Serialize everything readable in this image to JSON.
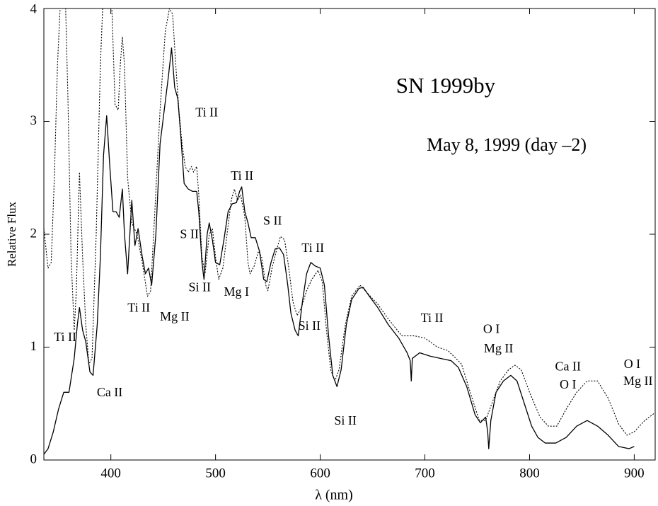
{
  "chart_data": {
    "type": "line",
    "title": "SN 1999by",
    "subtitle": "May 8, 1999 (day –2)",
    "xlabel": "λ  (nm)",
    "ylabel": "Relative Flux",
    "xlim": [
      336,
      920
    ],
    "ylim": [
      0,
      4
    ],
    "xticks": [
      400,
      500,
      600,
      700,
      800,
      900
    ],
    "yticks": [
      0,
      1,
      2,
      3,
      4
    ],
    "grid": false,
    "series": [
      {
        "color": "#000000",
        "style": "solid",
        "x": [
          336,
          340,
          345,
          350,
          355,
          360,
          365,
          368,
          370,
          373,
          376,
          380,
          383,
          387,
          390,
          393,
          396,
          399,
          402,
          405,
          408,
          411,
          413,
          416,
          420,
          423,
          426,
          430,
          433,
          436,
          439,
          443,
          447,
          451,
          455,
          458,
          461,
          464,
          467,
          470,
          474,
          478,
          482,
          484,
          487,
          489,
          492,
          494,
          497,
          500,
          504,
          508,
          512,
          516,
          520,
          523,
          525,
          528,
          531,
          534,
          538,
          542,
          546,
          549,
          553,
          557,
          561,
          565,
          569,
          572,
          576,
          579,
          583,
          587,
          591,
          595,
          600,
          604,
          608,
          612,
          616,
          620,
          625,
          630,
          637,
          641,
          647,
          655,
          665,
          675,
          683,
          686,
          687,
          688,
          695,
          705,
          715,
          725,
          732,
          740,
          748,
          753,
          758,
          760,
          761,
          763,
          768,
          775,
          782,
          788,
          795,
          802,
          808,
          815,
          825,
          835,
          845,
          855,
          865,
          875,
          885,
          895,
          900
        ],
        "values": [
          0.05,
          0.1,
          0.25,
          0.45,
          0.6,
          0.6,
          0.9,
          1.2,
          1.35,
          1.15,
          1.05,
          0.78,
          0.75,
          1.2,
          1.8,
          2.7,
          3.05,
          2.6,
          2.2,
          2.2,
          2.15,
          2.4,
          2.0,
          1.65,
          2.3,
          1.9,
          2.05,
          1.8,
          1.65,
          1.7,
          1.55,
          2.0,
          2.8,
          3.1,
          3.4,
          3.65,
          3.3,
          3.2,
          2.85,
          2.45,
          2.4,
          2.38,
          2.38,
          2.2,
          1.75,
          1.6,
          2.0,
          2.1,
          1.95,
          1.75,
          1.73,
          1.95,
          2.2,
          2.27,
          2.28,
          2.38,
          2.42,
          2.2,
          2.1,
          1.97,
          1.97,
          1.85,
          1.6,
          1.58,
          1.75,
          1.87,
          1.88,
          1.82,
          1.55,
          1.3,
          1.15,
          1.1,
          1.4,
          1.65,
          1.75,
          1.72,
          1.7,
          1.55,
          1.1,
          0.75,
          0.65,
          0.8,
          1.2,
          1.42,
          1.52,
          1.53,
          1.45,
          1.35,
          1.2,
          1.08,
          0.95,
          0.88,
          0.7,
          0.9,
          0.95,
          0.92,
          0.9,
          0.88,
          0.82,
          0.65,
          0.4,
          0.33,
          0.38,
          0.25,
          0.1,
          0.35,
          0.6,
          0.7,
          0.75,
          0.7,
          0.5,
          0.3,
          0.2,
          0.15,
          0.15,
          0.2,
          0.3,
          0.35,
          0.3,
          0.22,
          0.12,
          0.1,
          0.12
        ]
      },
      {
        "color": "#000000",
        "style": "dotted",
        "x": [
          336,
          340,
          343,
          346,
          349,
          353,
          356,
          359,
          362,
          365,
          367,
          370,
          373,
          376,
          379,
          382,
          386,
          390,
          393,
          398,
          401,
          404,
          407,
          409,
          411,
          413,
          416,
          420,
          425,
          430,
          435,
          438,
          442,
          447,
          452,
          456,
          459,
          462,
          465,
          468,
          471,
          474,
          477,
          479,
          482,
          484,
          487,
          490,
          494,
          497,
          500,
          503,
          507,
          511,
          515,
          518,
          521,
          524,
          528,
          531,
          533,
          537,
          541,
          544,
          548,
          550,
          554,
          558,
          562,
          566,
          570,
          574,
          578,
          582,
          587,
          592,
          598,
          602,
          606,
          610,
          614,
          618,
          624,
          630,
          638,
          645,
          655,
          665,
          678,
          690,
          700,
          712,
          722,
          735,
          745,
          752,
          758,
          764,
          772,
          780,
          786,
          792,
          800,
          810,
          818,
          826,
          835,
          845,
          855,
          865,
          875,
          885,
          893,
          900,
          910,
          920
        ],
        "values": [
          2.05,
          1.7,
          1.75,
          2.5,
          3.5,
          4.3,
          4.3,
          3.2,
          1.8,
          1.15,
          1.5,
          2.55,
          1.8,
          1.2,
          0.85,
          0.9,
          2.0,
          3.5,
          4.2,
          4.2,
          4.0,
          3.15,
          3.1,
          3.5,
          3.75,
          3.5,
          2.5,
          2.1,
          2.0,
          1.75,
          1.45,
          1.5,
          2.2,
          3.1,
          3.8,
          4.0,
          3.95,
          3.5,
          3.1,
          2.8,
          2.6,
          2.55,
          2.6,
          2.55,
          2.6,
          2.35,
          1.8,
          1.65,
          2.0,
          2.05,
          1.8,
          1.6,
          1.7,
          2.0,
          2.3,
          2.4,
          2.3,
          2.35,
          2.15,
          1.75,
          1.65,
          1.72,
          1.85,
          1.8,
          1.55,
          1.5,
          1.7,
          1.85,
          1.98,
          1.95,
          1.7,
          1.4,
          1.28,
          1.35,
          1.5,
          1.6,
          1.68,
          1.58,
          1.15,
          0.8,
          0.7,
          0.8,
          1.2,
          1.45,
          1.55,
          1.48,
          1.38,
          1.25,
          1.1,
          1.1,
          1.08,
          1.0,
          0.97,
          0.85,
          0.55,
          0.35,
          0.35,
          0.5,
          0.7,
          0.8,
          0.84,
          0.8,
          0.6,
          0.38,
          0.3,
          0.3,
          0.45,
          0.6,
          0.7,
          0.7,
          0.55,
          0.32,
          0.22,
          0.25,
          0.35,
          0.42
        ]
      }
    ],
    "annotations": [
      {
        "text": "Ti II",
        "x": 356.3,
        "y": 1.08
      },
      {
        "text": "Ca II",
        "x": 398.9,
        "y": 0.59
      },
      {
        "text": "Ti II",
        "x": 426.7,
        "y": 1.34
      },
      {
        "text": "Mg II",
        "x": 461,
        "y": 1.26
      },
      {
        "text": "Ti II",
        "x": 491.6,
        "y": 3.07
      },
      {
        "text": "S II",
        "x": 475,
        "y": 1.99
      },
      {
        "text": "Si II",
        "x": 484.9,
        "y": 1.52
      },
      {
        "text": "Mg I",
        "x": 520,
        "y": 1.48
      },
      {
        "text": "Ti II",
        "x": 525.4,
        "y": 2.51
      },
      {
        "text": "S II",
        "x": 554.5,
        "y": 2.11
      },
      {
        "text": "Ti II",
        "x": 593,
        "y": 1.87
      },
      {
        "text": "Si II",
        "x": 589.7,
        "y": 1.18
      },
      {
        "text": "Si II",
        "x": 624,
        "y": 0.34
      },
      {
        "text": "Ti II",
        "x": 706.8,
        "y": 1.25
      },
      {
        "text": "O I",
        "x": 763.6,
        "y": 1.15
      },
      {
        "text": "Mg II",
        "x": 770.4,
        "y": 0.98
      },
      {
        "text": "Ca II",
        "x": 836.7,
        "y": 0.82
      },
      {
        "text": "O I",
        "x": 836.7,
        "y": 0.66
      },
      {
        "text": "O I",
        "x": 898,
        "y": 0.84
      },
      {
        "text": "Mg II",
        "x": 903.6,
        "y": 0.69
      }
    ]
  }
}
